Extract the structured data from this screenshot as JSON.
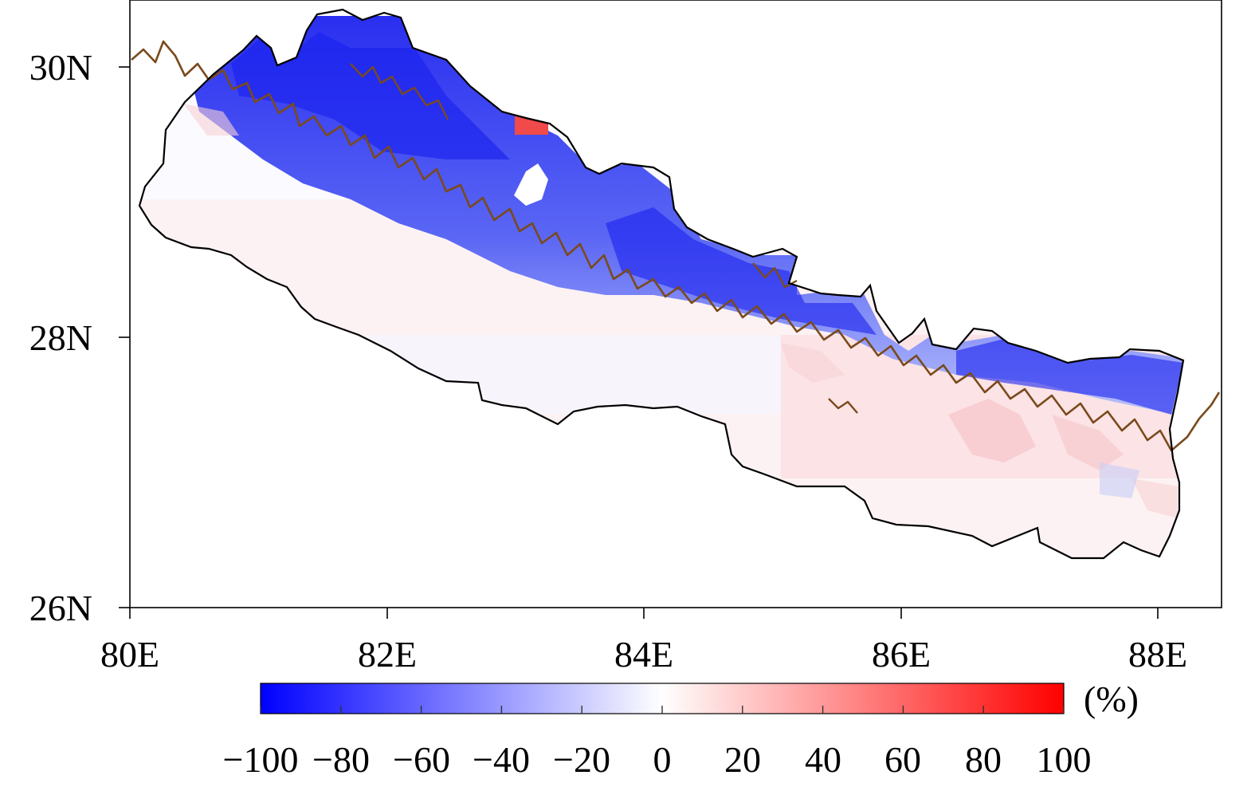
{
  "map": {
    "x_ticks": [
      "80E",
      "82E",
      "84E",
      "86E",
      "88E"
    ],
    "y_ticks": [
      "30N",
      "28N",
      "26N"
    ],
    "x_ticks_deg": [
      80,
      82,
      84,
      86,
      88
    ],
    "y_ticks_deg": [
      30,
      28,
      26
    ],
    "lon_range": [
      80,
      88.5
    ],
    "lat_range": [
      26,
      30.5
    ],
    "colors": {
      "negative": "#0000ff",
      "zero": "#ffffff",
      "positive": "#ff0000",
      "contour": "#7a4a1c",
      "border": "#000000"
    }
  },
  "colorbar": {
    "unit": "(%)",
    "tick_labels": [
      "−100",
      "−80",
      "−60",
      "−40",
      "−20",
      "0",
      "20",
      "40",
      "60",
      "80",
      "100"
    ],
    "range": [
      -100,
      100
    ]
  }
}
